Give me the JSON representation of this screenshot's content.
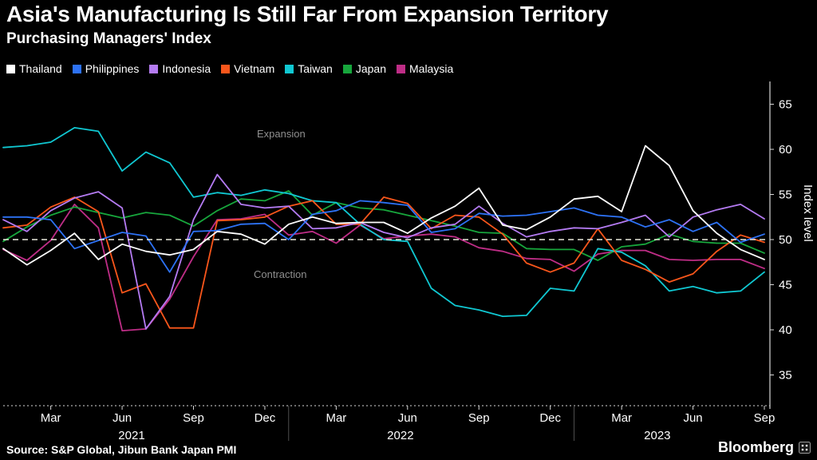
{
  "header": {
    "title": "Asia's Manufacturing Is Still Far From Expansion Territory",
    "subtitle": "Purchasing Managers' Index"
  },
  "legend": [
    {
      "label": "Thailand",
      "color": "#ffffff"
    },
    {
      "label": "Philippines",
      "color": "#2d72f5"
    },
    {
      "label": "Indonesia",
      "color": "#b47bf2"
    },
    {
      "label": "Vietnam",
      "color": "#f9561b"
    },
    {
      "label": "Taiwan",
      "color": "#10c8d2"
    },
    {
      "label": "Japan",
      "color": "#17a63c"
    },
    {
      "label": "Malaysia",
      "color": "#be2d86"
    }
  ],
  "annotations": {
    "expansion": "Expansion",
    "contraction": "Contraction"
  },
  "colors": {
    "background": "#000000",
    "axis": "#d9d9d9",
    "tick_text": "#ffffff",
    "muted_text": "#8f8f8f",
    "baseline": "#e8e8da",
    "divider": "#4d4d4d"
  },
  "y_axis": {
    "label": "Index level",
    "ticks": [
      65,
      60,
      55,
      50,
      45,
      40,
      35
    ]
  },
  "x_axis": {
    "months": [
      {
        "label": "Mar",
        "i": 2
      },
      {
        "label": "Jun",
        "i": 5
      },
      {
        "label": "Sep",
        "i": 8
      },
      {
        "label": "Dec",
        "i": 11
      },
      {
        "label": "Mar",
        "i": 14
      },
      {
        "label": "Jun",
        "i": 17
      },
      {
        "label": "Sep",
        "i": 20
      },
      {
        "label": "Dec",
        "i": 23
      },
      {
        "label": "Mar",
        "i": 26
      },
      {
        "label": "Jun",
        "i": 29
      },
      {
        "label": "Sep",
        "i": 32
      }
    ],
    "years": [
      {
        "label": "2021",
        "i": 5.4
      },
      {
        "label": "2022",
        "i": 16.7
      },
      {
        "label": "2023",
        "i": 27.5
      }
    ],
    "year_dividers": [
      12,
      24
    ]
  },
  "source": "Source: S&P Global, Jibun Bank Japan PMI",
  "brand": {
    "name": "Bloomberg"
  },
  "chart_data": {
    "type": "line",
    "title": "Purchasing Managers' Index",
    "ylabel": "Index level",
    "ylim": [
      33,
      66
    ],
    "baseline": 50,
    "grid": false,
    "legend_position": "top",
    "x": [
      "Jan 2021",
      "Feb 2021",
      "Mar 2021",
      "Apr 2021",
      "May 2021",
      "Jun 2021",
      "Jul 2021",
      "Aug 2021",
      "Sep 2021",
      "Oct 2021",
      "Nov 2021",
      "Dec 2021",
      "Jan 2022",
      "Feb 2022",
      "Mar 2022",
      "Apr 2022",
      "May 2022",
      "Jun 2022",
      "Jul 2022",
      "Aug 2022",
      "Sep 2022",
      "Oct 2022",
      "Nov 2022",
      "Dec 2022",
      "Jan 2023",
      "Feb 2023",
      "Mar 2023",
      "Apr 2023",
      "May 2023",
      "Jun 2023",
      "Jul 2023",
      "Aug 2023",
      "Sep 2023"
    ],
    "series": [
      {
        "name": "Thailand",
        "color": "#ffffff",
        "values": [
          49.0,
          47.2,
          48.8,
          50.7,
          47.8,
          49.5,
          48.7,
          48.3,
          48.9,
          50.9,
          50.6,
          49.5,
          51.7,
          52.5,
          51.8,
          51.9,
          51.9,
          50.7,
          52.4,
          53.7,
          55.7,
          51.6,
          51.1,
          52.5,
          54.5,
          54.8,
          53.1,
          60.4,
          58.2,
          53.2,
          50.7,
          48.9,
          47.8
        ]
      },
      {
        "name": "Philippines",
        "color": "#2d72f5",
        "values": [
          52.5,
          52.5,
          52.2,
          49.0,
          49.9,
          50.8,
          50.4,
          46.4,
          50.9,
          51.0,
          51.7,
          51.8,
          50.0,
          52.8,
          53.2,
          54.3,
          54.1,
          53.8,
          50.8,
          51.2,
          52.9,
          52.6,
          52.7,
          53.1,
          53.5,
          52.7,
          52.5,
          51.4,
          52.2,
          50.9,
          51.9,
          49.7,
          50.6
        ]
      },
      {
        "name": "Indonesia",
        "color": "#b47bf2",
        "values": [
          52.2,
          50.9,
          53.2,
          54.6,
          55.3,
          53.5,
          40.1,
          43.7,
          52.2,
          57.2,
          53.9,
          53.5,
          53.7,
          51.2,
          51.3,
          51.9,
          50.8,
          50.2,
          51.3,
          51.7,
          53.7,
          51.8,
          50.3,
          50.9,
          51.3,
          51.2,
          51.9,
          52.7,
          50.3,
          52.5,
          53.3,
          53.9,
          52.3
        ]
      },
      {
        "name": "Vietnam",
        "color": "#f9561b",
        "values": [
          51.3,
          51.6,
          53.6,
          54.7,
          53.1,
          44.1,
          45.1,
          40.2,
          40.2,
          52.1,
          52.2,
          52.5,
          53.7,
          54.3,
          51.7,
          51.7,
          54.7,
          54.0,
          51.2,
          52.7,
          52.5,
          50.6,
          47.4,
          46.4,
          47.4,
          51.2,
          47.7,
          46.7,
          45.3,
          46.2,
          48.7,
          50.5,
          49.7
        ]
      },
      {
        "name": "Taiwan",
        "color": "#10c8d2",
        "values": [
          60.2,
          60.4,
          60.8,
          62.4,
          62.0,
          57.6,
          59.7,
          58.5,
          54.7,
          55.2,
          54.9,
          55.5,
          55.1,
          54.3,
          54.1,
          51.7,
          50.0,
          49.8,
          44.6,
          42.7,
          42.2,
          41.5,
          41.6,
          44.6,
          44.3,
          49.0,
          48.6,
          47.1,
          44.3,
          44.8,
          44.1,
          44.3,
          46.4
        ]
      },
      {
        "name": "Japan",
        "color": "#17a63c",
        "values": [
          49.8,
          51.4,
          52.7,
          53.6,
          53.0,
          52.4,
          53.0,
          52.7,
          51.5,
          53.2,
          54.5,
          54.3,
          55.4,
          52.7,
          54.1,
          53.5,
          53.3,
          52.7,
          52.1,
          51.5,
          50.8,
          50.7,
          49.0,
          48.9,
          48.9,
          47.7,
          49.2,
          49.5,
          50.6,
          49.8,
          49.6,
          49.6,
          48.5
        ]
      },
      {
        "name": "Malaysia",
        "color": "#be2d86",
        "values": [
          48.9,
          47.7,
          49.9,
          53.9,
          51.3,
          39.9,
          40.1,
          43.4,
          48.1,
          52.2,
          52.3,
          52.8,
          50.5,
          50.9,
          49.6,
          51.6,
          50.1,
          50.4,
          50.6,
          50.3,
          49.1,
          48.7,
          47.9,
          47.8,
          46.5,
          48.4,
          48.8,
          48.8,
          47.8,
          47.7,
          47.8,
          47.8,
          46.8
        ]
      }
    ]
  }
}
